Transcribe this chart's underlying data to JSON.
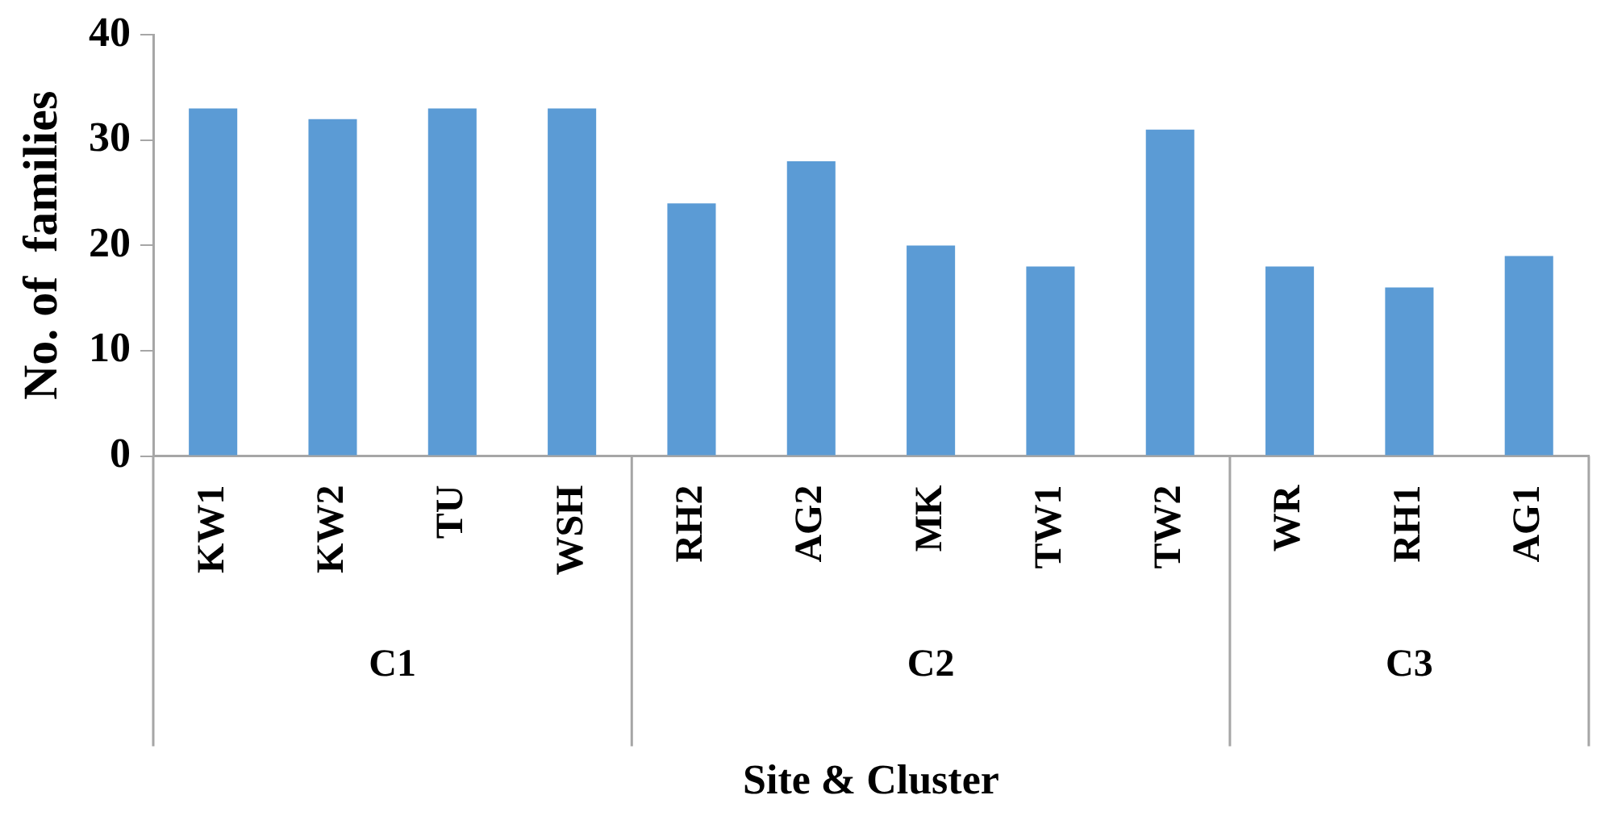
{
  "chart_data": {
    "type": "bar",
    "xlabel": "Site & Cluster",
    "ylabel": "No. of  families",
    "categories": [
      "KW1",
      "KW2",
      "TU",
      "WSH",
      "RH2",
      "AG2",
      "MK",
      "TW1",
      "TW2",
      "WR",
      "RH1",
      "AG1"
    ],
    "values": [
      33,
      32,
      33,
      33,
      24,
      28,
      20,
      18,
      31,
      18,
      16,
      19
    ],
    "color": "#5b9bd5",
    "ylim": [
      0,
      40
    ],
    "yticks": [
      0,
      10,
      20,
      30,
      40
    ],
    "grid": false,
    "legend": false,
    "annotations": [
      "C1",
      "C2",
      "C3"
    ]
  }
}
